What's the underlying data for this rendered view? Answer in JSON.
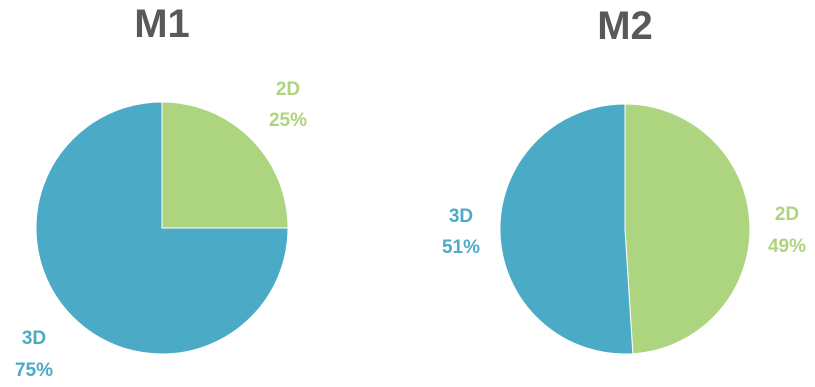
{
  "chart_data": [
    {
      "type": "pie",
      "title": "M1",
      "slices": [
        {
          "label": "2D",
          "value": 25,
          "percent_label": "25%",
          "color": "#ADD47E"
        },
        {
          "label": "3D",
          "value": 75,
          "percent_label": "75%",
          "color": "#4BABC6"
        }
      ]
    },
    {
      "type": "pie",
      "title": "M2",
      "slices": [
        {
          "label": "2D",
          "value": 49,
          "percent_label": "49%",
          "color": "#ADD47E"
        },
        {
          "label": "3D",
          "value": 51,
          "percent_label": "51%",
          "color": "#4BABC6"
        }
      ]
    }
  ]
}
